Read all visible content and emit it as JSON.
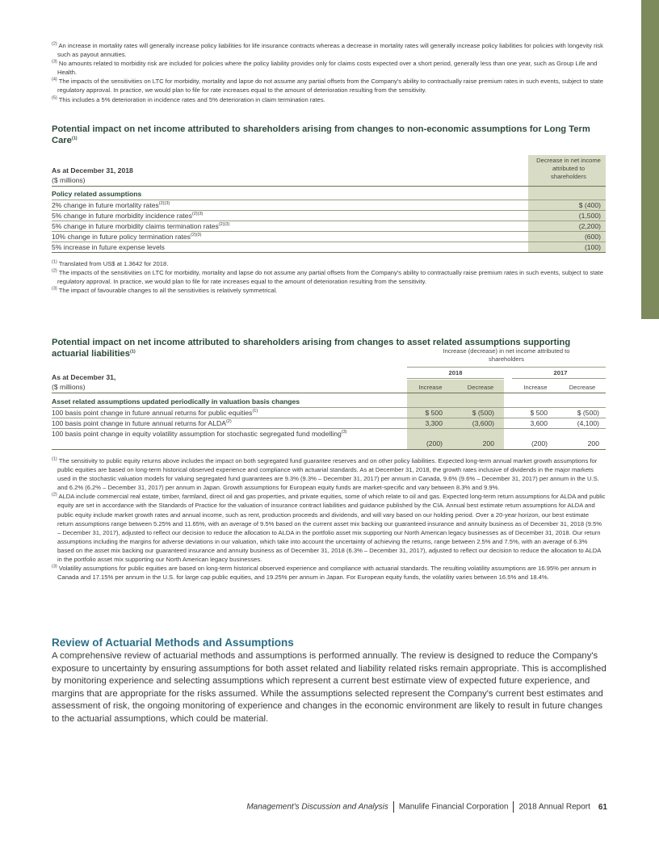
{
  "top_footnotes": [
    {
      "mark": "(2)",
      "text": "An increase in mortality rates will generally increase policy liabilities for life insurance contracts whereas a decrease in mortality rates will generally increase policy liabilities for policies with longevity risk such as payout annuities."
    },
    {
      "mark": "(3)",
      "text": "No amounts related to morbidity risk are included for policies where the policy liability provides only for claims costs expected over a short period, generally less than one year, such as Group Life and Health."
    },
    {
      "mark": "(4)",
      "text": "The impacts of the sensitivities on LTC for morbidity, mortality and lapse do not assume any partial offsets from the Company's ability to contractually raise premium rates in such events, subject to state regulatory approval. In practice, we would plan to file for rate increases equal to the amount of deterioration resulting from the sensitivity."
    },
    {
      "mark": "(5)",
      "text": "This includes a 5% deterioration in incidence rates and 5% deterioration in claim termination rates."
    }
  ],
  "ltc": {
    "title": "Potential impact on net income attributed to shareholders arising from changes to non-economic assumptions for Long Term Care",
    "title_mark": "(1)",
    "header_left_1": "As at December 31, 2018",
    "header_left_2": "($ millions)",
    "header_right": "Decrease in net income attributed to shareholders",
    "group_label": "Policy related assumptions",
    "rows": [
      {
        "label": "2% change in future mortality rates",
        "mark": "(2)(3)",
        "value": "$ (400)"
      },
      {
        "label": "5% change in future morbidity incidence rates",
        "mark": "(2)(3)",
        "value": "(1,500)"
      },
      {
        "label": "5% change in future morbidity claims termination rates",
        "mark": "(2)(3)",
        "value": "(2,200)"
      },
      {
        "label": "10% change in future policy termination rates",
        "mark": "(2)(3)",
        "value": "(600)"
      },
      {
        "label": "5% increase in future expense levels",
        "mark": "",
        "value": "(100)"
      }
    ],
    "footnotes": [
      {
        "mark": "(1)",
        "text": "Translated from US$ at 1.3642 for 2018."
      },
      {
        "mark": "(2)",
        "text": "The impacts of the sensitivities on LTC for morbidity, mortality and lapse do not assume any partial offsets from the Company's ability to contractually raise premium rates in such events, subject to state regulatory approval. In practice, we would plan to file for rate increases equal to the amount of deterioration resulting from the sensitivity."
      },
      {
        "mark": "(3)",
        "text": "The impact of favourable changes to all the sensitivities is relatively symmetrical."
      }
    ]
  },
  "asset": {
    "title": "Potential impact on net income attributed to shareholders arising from changes to asset related assumptions supporting actuarial liabilities",
    "title_mark": "(1)",
    "header_group": "Increase (decrease) in net income attributed to shareholders",
    "year_2018": "2018",
    "year_2017": "2017",
    "col_increase": "Increase",
    "col_decrease": "Decrease",
    "header_left_1": "As at December 31,",
    "header_left_2": "($ millions)",
    "group_label": "Asset related assumptions updated periodically in valuation basis changes",
    "rows": [
      {
        "label": "100 basis point change in future annual returns for public equities",
        "mark": "(1)",
        "v2018_inc": "$ 500",
        "v2018_dec": "$ (500)",
        "v2017_inc": "$ 500",
        "v2017_dec": "$ (500)"
      },
      {
        "label": "100 basis point change in future annual returns for ALDA",
        "mark": "(2)",
        "v2018_inc": "3,300",
        "v2018_dec": "(3,600)",
        "v2017_inc": "3,600",
        "v2017_dec": "(4,100)"
      },
      {
        "label": "100 basis point change in equity volatility assumption for stochastic segregated fund modelling",
        "mark": "(3)",
        "v2018_inc": "(200)",
        "v2018_dec": "200",
        "v2017_inc": "(200)",
        "v2017_dec": "200"
      }
    ],
    "footnotes": [
      {
        "mark": "(1)",
        "text": "The sensitivity to public equity returns above includes the impact on both segregated fund guarantee reserves and on other policy liabilities. Expected long-term annual market growth assumptions for public equities are based on long-term historical observed experience and compliance with actuarial standards. As at December 31, 2018, the growth rates inclusive of dividends in the major markets used in the stochastic valuation models for valuing segregated fund guarantees are 9.3% (9.3% – December 31, 2017) per annum in Canada, 9.6% (9.6% – December 31, 2017) per annum in the U.S. and 6.2% (6.2% – December 31, 2017) per annum in Japan. Growth assumptions for European equity funds are market-specific and vary between 8.3% and 9.9%."
      },
      {
        "mark": "(2)",
        "text": "ALDA include commercial real estate, timber, farmland, direct oil and gas properties, and private equities, some of which relate to oil and gas. Expected long-term return assumptions for ALDA and public equity are set in accordance with the Standards of Practice for the valuation of insurance contract liabilities and guidance published by the CIA. Annual best estimate return assumptions for ALDA and public equity include market growth rates and annual income, such as rent, production proceeds and dividends, and will vary based on our holding period. Over a 20-year horizon, our best estimate return assumptions range between 5.25% and 11.65%, with an average of 9.5% based on the current asset mix backing our guaranteed insurance and annuity business as of December 31, 2018 (9.5% – December 31, 2017), adjusted to reflect our decision to reduce the allocation to ALDA in the portfolio asset mix supporting our North American legacy businesses as of December 31, 2018. Our return assumptions including the margins for adverse deviations in our valuation, which take into account the uncertainty of achieving the returns, range between 2.5% and 7.5%, with an average of 6.3% based on the asset mix backing our guaranteed insurance and annuity business as of December 31, 2018 (6.3% – December 31, 2017), adjusted to reflect our decision to reduce the allocation to ALDA in the portfolio asset mix supporting our North American legacy businesses."
      },
      {
        "mark": "(3)",
        "text": "Volatility assumptions for public equities are based on long-term historical observed experience and compliance with actuarial standards. The resulting volatility assumptions are 16.95% per annum in Canada and 17.15% per annum in the U.S. for large cap public equities, and 19.25% per annum in Japan. For European equity funds, the volatility varies between 16.5% and 18.4%."
      }
    ]
  },
  "review": {
    "title": "Review of Actuarial Methods and Assumptions",
    "body": "A comprehensive review of actuarial methods and assumptions is performed annually. The review is designed to reduce the Company's exposure to uncertainty by ensuring assumptions for both asset related and liability related risks remain appropriate. This is accomplished by monitoring experience and selecting assumptions which represent a current best estimate view of expected future experience, and margins that are appropriate for the risks assumed. While the assumptions selected represent the Company's current best estimates and assessment of risk, the ongoing monitoring of experience and changes in the economic environment are likely to result in future changes to the actuarial assumptions, which could be material."
  },
  "footer": {
    "section": "Management's Discussion and Analysis",
    "company": "Manulife Financial Corporation",
    "report": "2018 Annual Report",
    "page": "61"
  },
  "colors": {
    "accent_green": "#2d4a3a",
    "section_blue": "#2a6f8a",
    "table_shade": "#d8dcc4",
    "sidebar_tab": "#7d8a5c"
  }
}
